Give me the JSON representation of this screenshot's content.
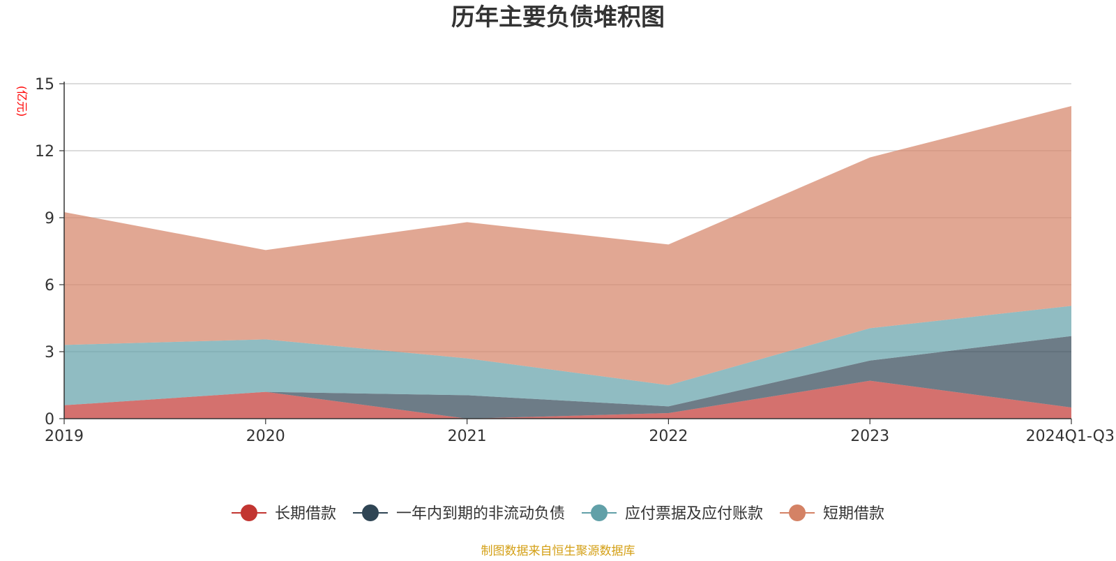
{
  "chart_data": {
    "type": "area",
    "stacked": true,
    "title": "历年主要负债堆积图",
    "unit_label": "(亿元)",
    "source_note": "制图数据来自恒生聚源数据库",
    "categories": [
      "2019",
      "2020",
      "2021",
      "2022",
      "2023",
      "2024Q1-Q3"
    ],
    "ylim": [
      0,
      15
    ],
    "yticks": [
      0,
      3,
      6,
      9,
      12,
      15
    ],
    "grid": true,
    "legend_position": "bottom-center",
    "series": [
      {
        "name": "长期借款",
        "color": "#c23531",
        "values": [
          0.6,
          1.2,
          0.0,
          0.25,
          1.7,
          0.5
        ]
      },
      {
        "name": "一年内到期的非流动负债",
        "color": "#2f4554",
        "values": [
          0.0,
          0.0,
          1.05,
          0.3,
          0.9,
          3.2
        ]
      },
      {
        "name": "应付票据及应付账款",
        "color": "#61a0a8",
        "values": [
          2.7,
          2.35,
          1.65,
          0.95,
          1.45,
          1.35
        ]
      },
      {
        "name": "短期借款",
        "color": "#d48265",
        "values": [
          5.95,
          4.0,
          6.1,
          6.3,
          7.65,
          8.95
        ]
      }
    ]
  }
}
